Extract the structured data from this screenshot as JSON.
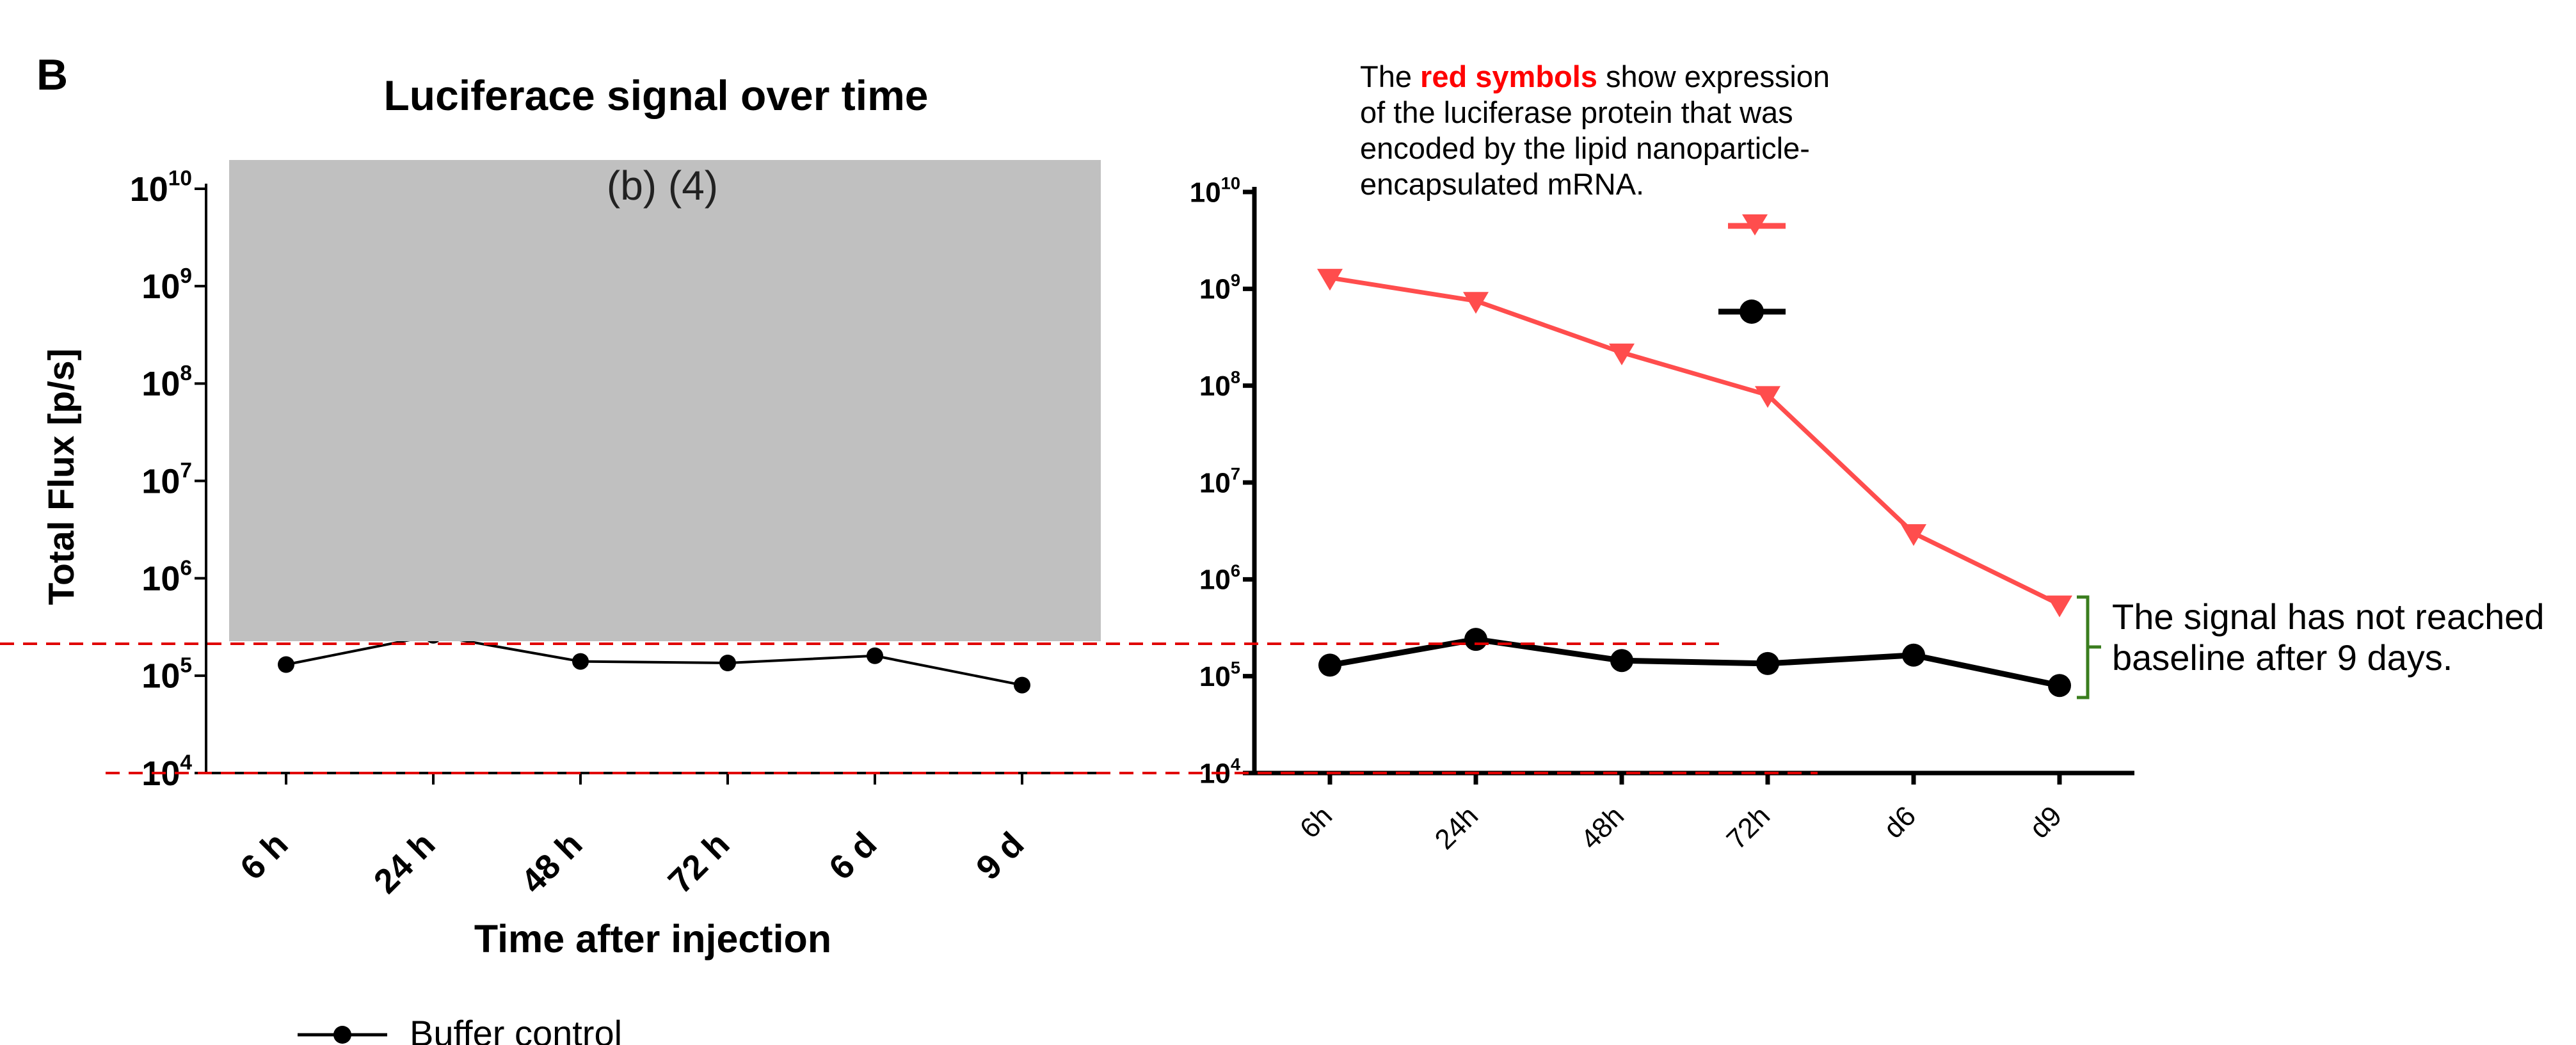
{
  "panel_label": "B",
  "annotations": {
    "top_note": {
      "part1": "The ",
      "highlight": "red symbols",
      "part2": " show expression of the luciferase protein that was encoded by the lipid nanoparticle-encapsulated mRNA."
    },
    "right_note": "The signal has not reached baseline after 9 days."
  },
  "colors": {
    "red_series": "#ff4d4d",
    "black_series": "#000000",
    "gray_box": "#c0c0c0",
    "dashed_lines": "#e00000",
    "bracket": "#3a7d1e",
    "highlight_text": "#ff0000"
  },
  "chart_data": [
    {
      "type": "line",
      "title": "Luciferace signal over time",
      "xlabel": "Time after injection",
      "ylabel": "Total Flux [p/s]",
      "yscale": "log",
      "ylim": [
        10000,
        10000000000
      ],
      "categories": [
        "6 h",
        "24 h",
        "48 h",
        "72 h",
        "6 d",
        "9 d"
      ],
      "series": [
        {
          "name": "Buffer control",
          "values": [
            130000,
            260000,
            140000,
            135000,
            160000,
            80000
          ]
        }
      ],
      "legend": "bottom-left",
      "overlay_box_label": "(b) (4)"
    },
    {
      "type": "line",
      "yscale": "log",
      "ylim": [
        10000,
        10000000000
      ],
      "categories": [
        "6h",
        "24h",
        "48h",
        "72h",
        "d6",
        "d9"
      ],
      "series": [
        {
          "values": [
            1300000000,
            750000000,
            220000000,
            80000000,
            3000000,
            550000
          ]
        },
        {
          "values": [
            130000,
            240000,
            145000,
            135000,
            165000,
            80000
          ]
        }
      ],
      "legend": "top-right"
    }
  ]
}
